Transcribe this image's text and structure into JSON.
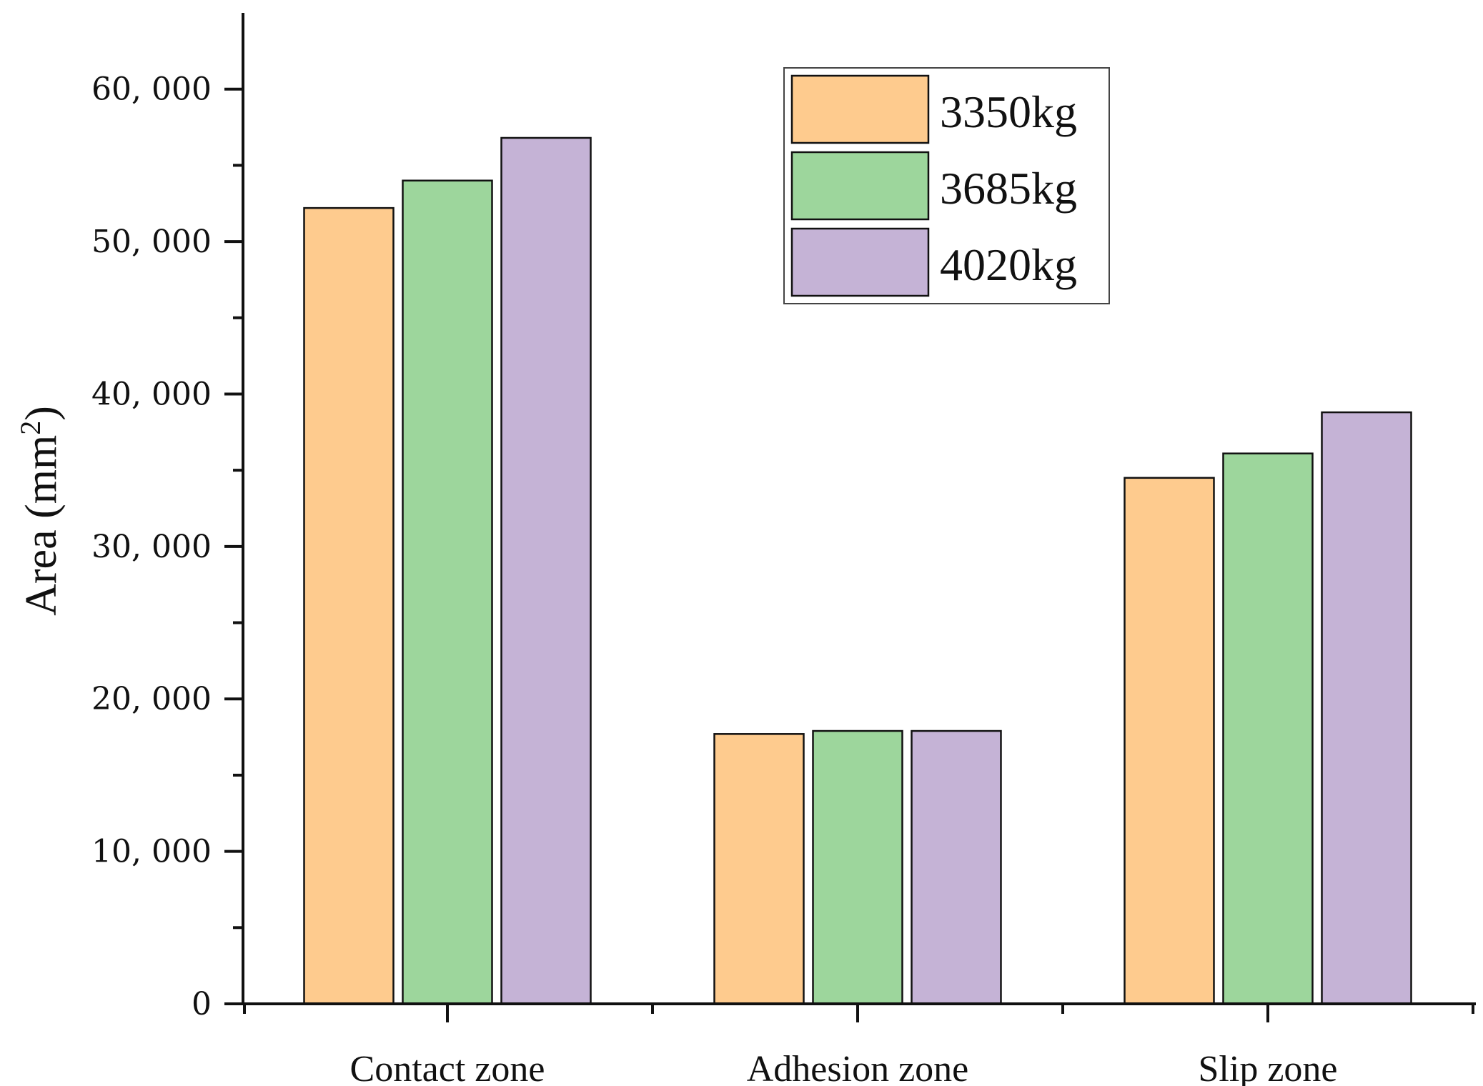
{
  "chart_data": {
    "type": "bar",
    "title": "",
    "xlabel": "",
    "ylabel": "Area (mm",
    "ylabel_sup": "2",
    "ylabel_close": ")",
    "categories": [
      "Contact zone",
      "Adhesion zone",
      "Slip zone"
    ],
    "series": [
      {
        "name": "3350kg",
        "color": "#FECB8E",
        "values": [
          52200,
          17700,
          34500
        ]
      },
      {
        "name": "3685kg",
        "color": "#9DD69C",
        "values": [
          54000,
          17900,
          36100
        ]
      },
      {
        "name": "4020kg",
        "color": "#C5B3D6",
        "values": [
          56800,
          17900,
          38800
        ]
      }
    ],
    "ylim": [
      0,
      65000
    ],
    "yticks": [
      0,
      10000,
      20000,
      30000,
      40000,
      50000,
      60000
    ],
    "ytick_labels": [
      "0",
      "10, 000",
      "20, 000",
      "30, 000",
      "40, 000",
      "50, 000",
      "60, 000"
    ],
    "grid": false,
    "legend_position": "top-right"
  }
}
